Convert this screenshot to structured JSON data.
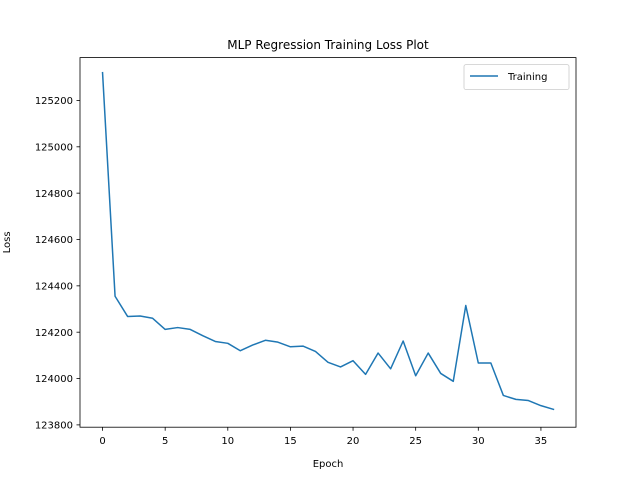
{
  "chart_data": {
    "type": "line",
    "title": "MLP Regression Training Loss Plot",
    "xlabel": "Epoch",
    "ylabel": "Loss",
    "xlim": [
      -1.8,
      37.8
    ],
    "ylim": [
      123790,
      125385
    ],
    "xticks": [
      0,
      5,
      10,
      15,
      20,
      25,
      30,
      35
    ],
    "yticks": [
      123800,
      124000,
      124200,
      124400,
      124600,
      124800,
      125000,
      125200
    ],
    "grid": false,
    "legend": {
      "placement": "top-right",
      "entries": [
        "Training"
      ]
    },
    "series": [
      {
        "name": "Training",
        "color": "#1f77b4",
        "x": [
          0,
          1,
          2,
          3,
          4,
          5,
          6,
          7,
          8,
          9,
          10,
          11,
          12,
          13,
          14,
          15,
          16,
          17,
          18,
          19,
          20,
          21,
          22,
          23,
          24,
          25,
          26,
          27,
          28,
          29,
          30,
          31,
          32,
          33,
          34,
          35,
          36
        ],
        "values": [
          125320,
          124355,
          124268,
          124270,
          124260,
          124212,
          124220,
          124212,
          124185,
          124160,
          124152,
          124120,
          124145,
          124165,
          124157,
          124137,
          124140,
          124117,
          124070,
          124050,
          124077,
          124018,
          124110,
          124042,
          124162,
          124012,
          124110,
          124022,
          123988,
          124315,
          124067,
          124067,
          123927,
          123910,
          123905,
          123883,
          123867
        ]
      }
    ]
  }
}
